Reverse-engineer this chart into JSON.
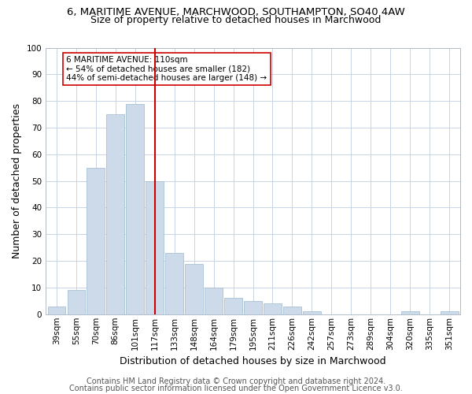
{
  "title": "6, MARITIME AVENUE, MARCHWOOD, SOUTHAMPTON, SO40 4AW",
  "subtitle": "Size of property relative to detached houses in Marchwood",
  "xlabel": "Distribution of detached houses by size in Marchwood",
  "ylabel": "Number of detached properties",
  "categories": [
    "39sqm",
    "55sqm",
    "70sqm",
    "86sqm",
    "101sqm",
    "117sqm",
    "133sqm",
    "148sqm",
    "164sqm",
    "179sqm",
    "195sqm",
    "211sqm",
    "226sqm",
    "242sqm",
    "257sqm",
    "273sqm",
    "289sqm",
    "304sqm",
    "320sqm",
    "335sqm",
    "351sqm"
  ],
  "values": [
    3,
    9,
    55,
    75,
    79,
    50,
    23,
    19,
    10,
    6,
    5,
    4,
    3,
    1,
    0,
    0,
    0,
    0,
    1,
    0,
    1
  ],
  "bar_color": "#ccdaea",
  "bar_edge_color": "#a8c0d6",
  "vline_x_index": 5,
  "vline_color": "#cc0000",
  "annotation_text": "6 MARITIME AVENUE: 110sqm\n← 54% of detached houses are smaller (182)\n44% of semi-detached houses are larger (148) →",
  "annotation_box_color": "#ffffff",
  "annotation_box_edge": "#cc0000",
  "ylim": [
    0,
    100
  ],
  "footer1": "Contains HM Land Registry data © Crown copyright and database right 2024.",
  "footer2": "Contains public sector information licensed under the Open Government Licence v3.0.",
  "background_color": "#ffffff",
  "grid_color": "#c8d4e4",
  "title_fontsize": 9.5,
  "subtitle_fontsize": 9,
  "axis_label_fontsize": 9,
  "tick_fontsize": 7.5,
  "footer_fontsize": 7
}
